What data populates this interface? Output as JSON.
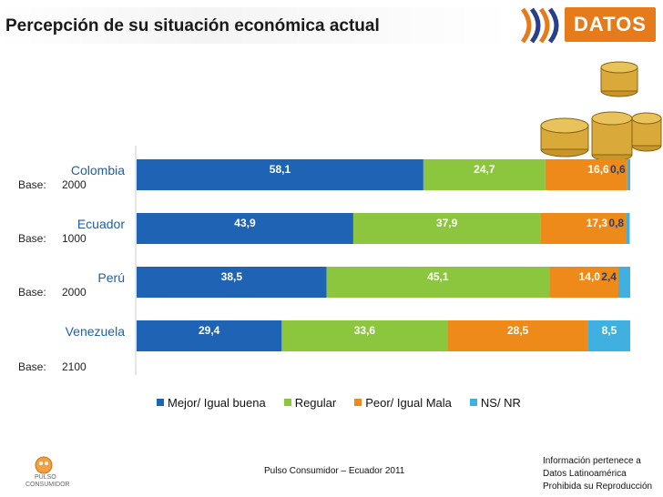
{
  "page": {
    "title": "Percepción de su situación económica actual"
  },
  "logo": {
    "text": "DATOS"
  },
  "colors": {
    "mejor": "#1f63b4",
    "regular": "#8cc63f",
    "peor": "#ee8a1a",
    "nsnr": "#3fb0e0",
    "category_text": "#1f5fa5"
  },
  "chart_data": {
    "type": "bar",
    "orientation": "horizontal",
    "stacked": true,
    "title": "Percepción de su situación económica actual",
    "categories": [
      "Colombia",
      "Ecuador",
      "Perú",
      "Venezuela"
    ],
    "bases": [
      {
        "label": "Base:",
        "value": "2000"
      },
      {
        "label": "Base:",
        "value": "1000"
      },
      {
        "label": "Base:",
        "value": "2000"
      },
      {
        "label": "Base:",
        "value": "2100"
      }
    ],
    "series": [
      {
        "name": "Mejor/ Igual buena",
        "values": [
          58.1,
          43.9,
          38.5,
          29.4
        ],
        "labels": [
          "58,1",
          "43,9",
          "38,5",
          "29,4"
        ]
      },
      {
        "name": "Regular",
        "values": [
          24.7,
          37.9,
          45.1,
          33.6
        ],
        "labels": [
          "24,7",
          "37,9",
          "45,1",
          "33,6"
        ]
      },
      {
        "name": "Peor/ Igual Mala",
        "values": [
          16.6,
          17.3,
          14.0,
          28.5
        ],
        "labels": [
          "16,6",
          "17,3",
          "14,0",
          "28,5"
        ]
      },
      {
        "name": "NS/ NR",
        "values": [
          0.6,
          0.8,
          2.4,
          8.5
        ],
        "labels": [
          "0,6",
          "0,8",
          "2,4",
          "8,5"
        ]
      }
    ],
    "xlim": [
      0,
      100
    ],
    "legend_position": "bottom"
  },
  "legend": {
    "items": [
      "Mejor/ Igual buena",
      "Regular",
      "Peor/ Igual Mala",
      "NS/ NR"
    ]
  },
  "footer": {
    "center": "Pulso Consumidor – Ecuador 2011",
    "right_line1": "Información  pertenece a",
    "right_line2": "Datos Latinoamérica",
    "right_line3": "Prohibida su Reproducción",
    "pulso_line1": "PULSO",
    "pulso_line2": "CONSUMIDOR"
  }
}
